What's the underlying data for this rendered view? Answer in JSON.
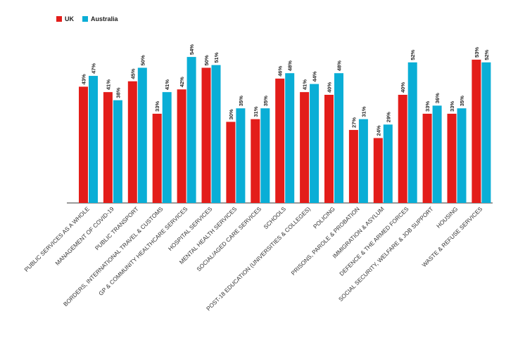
{
  "chart_data": {
    "type": "bar",
    "title": "",
    "xlabel": "",
    "ylabel": "",
    "ylim": [
      0,
      60
    ],
    "legend_placement": "top-left",
    "grid": false,
    "categories": [
      "PUBLIC SERVICES AS A WHOLE",
      "MANAGEMENT OF COVID-19",
      "PUBLIC TRANSPORT",
      "BORDERS, INTERNATIONAL TRAVEL & CUSTOMS",
      "GP & COMMUNITY HEALTHCARE SERVICES",
      "HOSPITAL SERVICES",
      "MENTAL HEALTH SERVICES",
      "SOCIAL/AGED CARE SERVICES",
      "SCHOOLS",
      "POST-18 EDUCATION (UNIVERSITIES & COLLEGES)",
      "POLICING",
      "PRISONS, PAROLE & PROBATION",
      "IMMIGRATION & ASYLUM",
      "DEFENCE & THE ARMED FORCES",
      "SOCIAL SECURITY, WELFARE & JOB SUPPORT",
      "HOUSING",
      "WASTE & REFUSE SERVICES"
    ],
    "series": [
      {
        "name": "UK",
        "color": "#e31d1a",
        "values": [
          43,
          41,
          45,
          33,
          42,
          50,
          30,
          31,
          46,
          41,
          40,
          27,
          24,
          40,
          33,
          33,
          53
        ]
      },
      {
        "name": "Australia",
        "color": "#0aaed6",
        "values": [
          47,
          38,
          50,
          41,
          54,
          51,
          35,
          35,
          48,
          44,
          48,
          31,
          29,
          52,
          36,
          35,
          52
        ]
      }
    ]
  }
}
